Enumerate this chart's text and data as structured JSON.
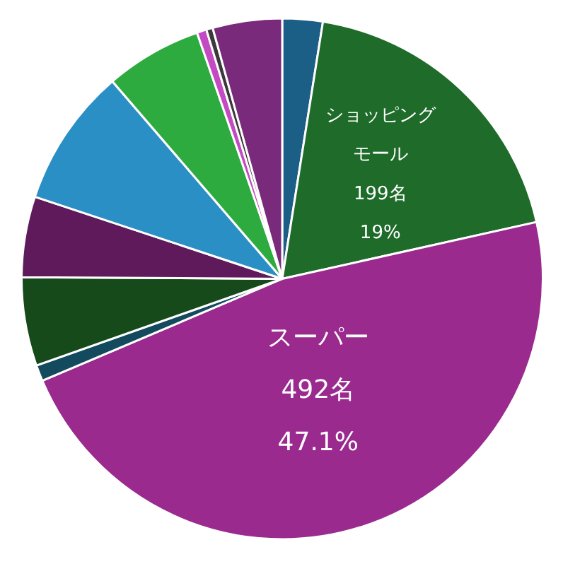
{
  "chart_data": {
    "type": "pie",
    "categories": [
      null,
      "ショッピングモール",
      "スーパー",
      null,
      null,
      null,
      null,
      null,
      null,
      null,
      null
    ],
    "values": [
      2.5,
      19,
      47.1,
      1,
      5.5,
      5,
      8.6,
      6,
      0.6,
      0.4,
      4.3
    ],
    "value_labels": [
      null,
      "199名\n19%",
      "492名\n47.1%",
      null,
      null,
      null,
      null,
      null,
      null,
      null,
      null
    ],
    "colors": [
      "#1b5e86",
      "#1e6b2a",
      "#9b2a8f",
      "#134a5e",
      "#164a1a",
      "#5e1a5a",
      "#2a8fc4",
      "#2eab3e",
      "#c44ac4",
      "#3a3a3a",
      "#7a2a7a"
    ]
  }
}
